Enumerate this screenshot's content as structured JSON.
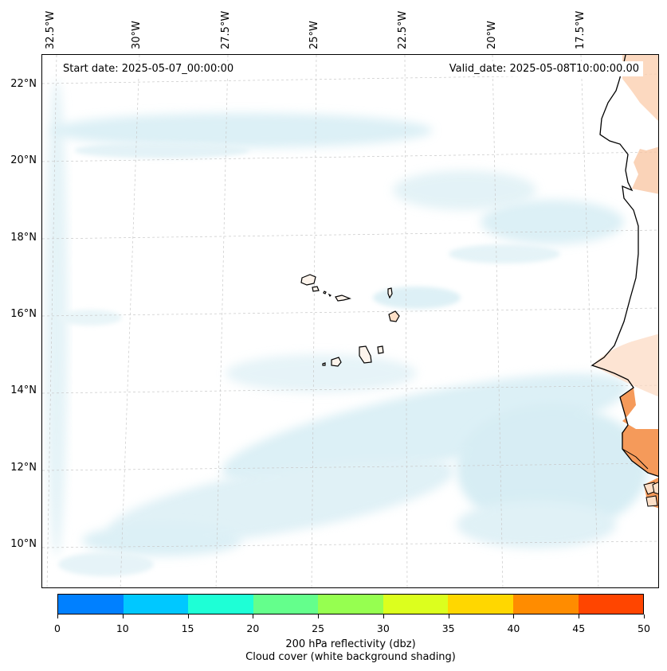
{
  "header": {
    "start_date": "Start date: 2025-05-07_00:00:00",
    "valid_date": "Valid_date: 2025-05-08T10:00:00.00"
  },
  "axes": {
    "longitude_labels": [
      "32.5°W",
      "30°W",
      "27.5°W",
      "25°W",
      "22.5°W",
      "20°W",
      "17.5°W"
    ],
    "latitude_labels": [
      "22°N",
      "20°N",
      "18°N",
      "16°N",
      "14°N",
      "12°N",
      "10°N"
    ]
  },
  "colorbar": {
    "ticks": [
      "0",
      "10",
      "15",
      "20",
      "25",
      "30",
      "35",
      "40",
      "45",
      "50"
    ],
    "colors": [
      "#0080ff",
      "#00c8ff",
      "#1effd6",
      "#64ff8c",
      "#96ff50",
      "#dcff1e",
      "#ffd700",
      "#ff8c00",
      "#ff4500"
    ],
    "label_line1": "200 hPa reflectivity (dbz)",
    "label_line2": "Cloud cover (white background shading)"
  },
  "colors": {
    "cloud": "#a9d8e6",
    "land_warm": "#f59a5a",
    "land_light": "#fde0c8",
    "gridline": "#c8c8c8"
  }
}
